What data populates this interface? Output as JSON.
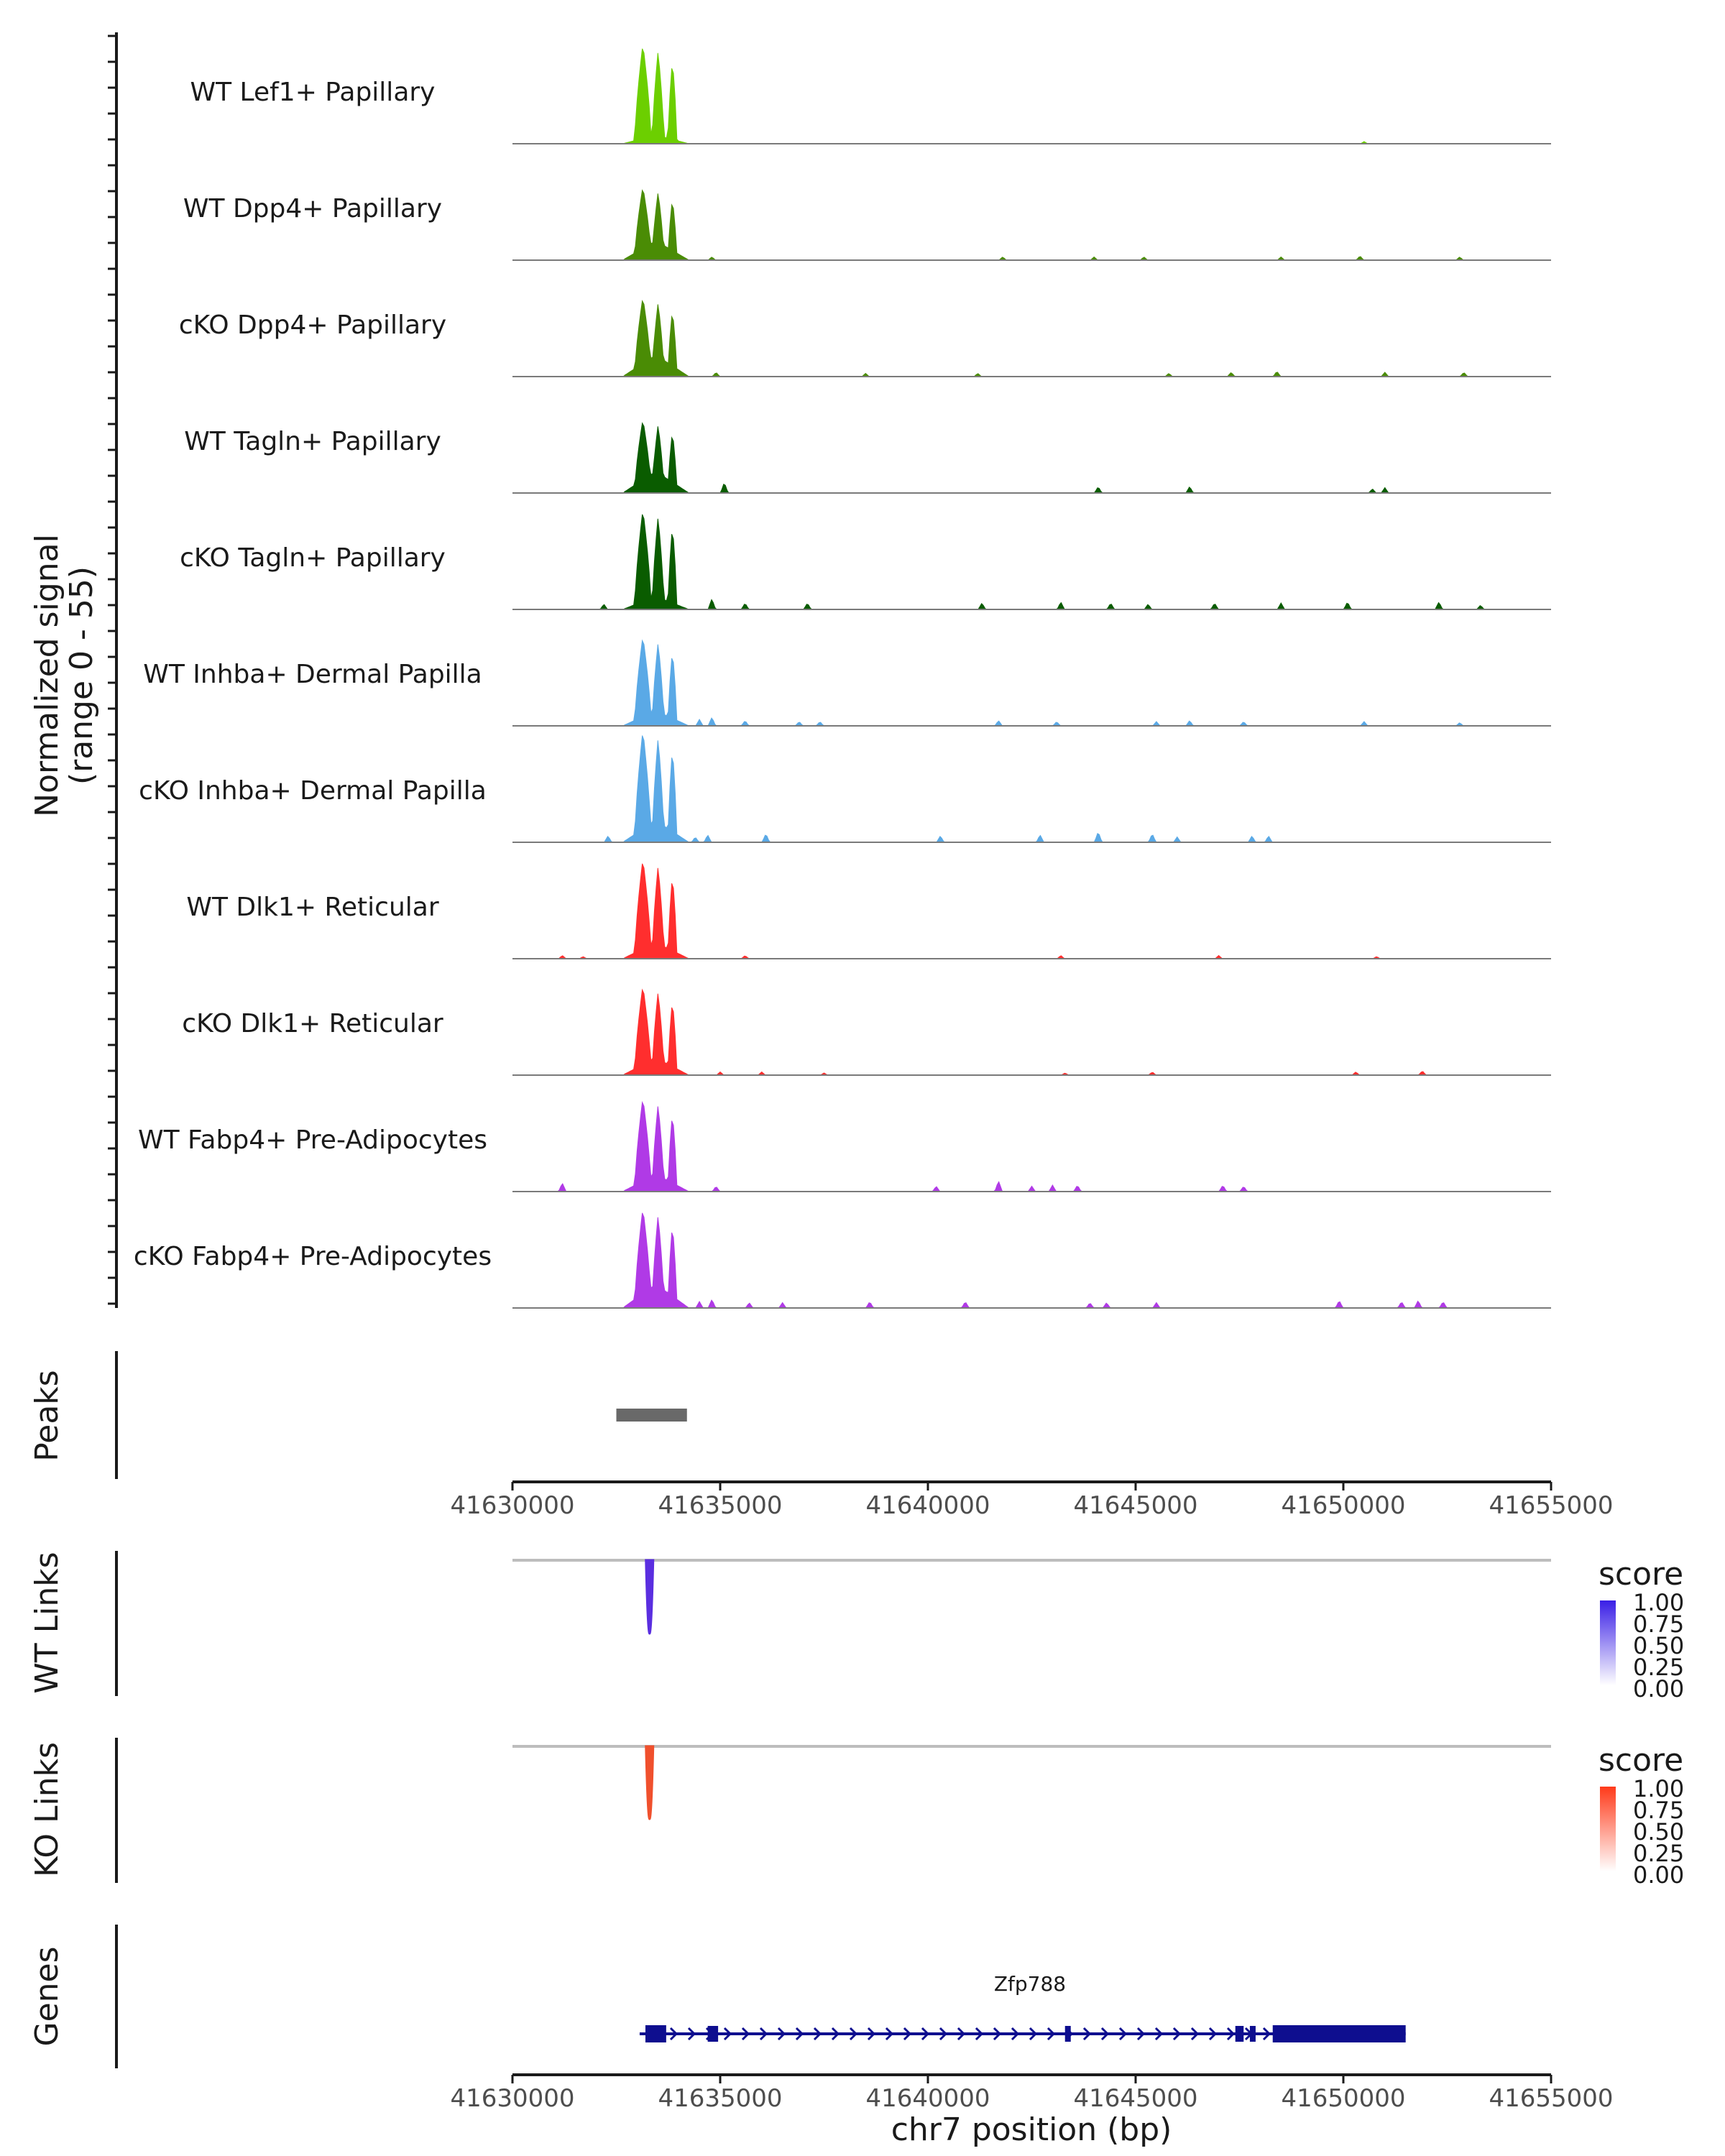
{
  "chart_data": {
    "type": "area",
    "region": "chr7:41630000-41655000",
    "y_axis_title_line1": "Normalized signal",
    "y_axis_title_line2": "(range 0 - 55)",
    "ylim": [
      0,
      55
    ],
    "xlim": [
      41630000,
      41655000
    ],
    "xlabel": "chr7 position (bp)",
    "x_ticks": [
      "41630000",
      "41635000",
      "41640000",
      "41645000",
      "41650000",
      "41655000"
    ],
    "x_tick_values": [
      41630000,
      41635000,
      41640000,
      41645000,
      41650000,
      41655000
    ],
    "main_peaks": [
      [
        41633000,
        41633280,
        0.95
      ],
      [
        41633420,
        41633590,
        0.88
      ],
      [
        41633800,
        41633900,
        0.8
      ]
    ],
    "series": [
      {
        "name": "WT Lef1+ Papillary",
        "color": "#6ccf00",
        "scale": 0.98,
        "bg": 0.08,
        "noise": [
          [
            41650500,
            0.02
          ]
        ]
      },
      {
        "name": "WT Dpp4+ Papillary",
        "color": "#4a8c05",
        "scale": 0.72,
        "bg": 0.18,
        "noise": [
          [
            41634800,
            0.03
          ],
          [
            41641800,
            0.03
          ],
          [
            41644000,
            0.03
          ],
          [
            41645200,
            0.03
          ],
          [
            41648500,
            0.03
          ],
          [
            41650400,
            0.04
          ],
          [
            41652800,
            0.03
          ]
        ]
      },
      {
        "name": "cKO Dpp4+ Papillary",
        "color": "#4a8c05",
        "scale": 0.78,
        "bg": 0.2,
        "noise": [
          [
            41634900,
            0.04
          ],
          [
            41638500,
            0.03
          ],
          [
            41641200,
            0.03
          ],
          [
            41645800,
            0.03
          ],
          [
            41647300,
            0.04
          ],
          [
            41648400,
            0.05
          ],
          [
            41651000,
            0.04
          ],
          [
            41652900,
            0.04
          ]
        ]
      },
      {
        "name": "WT Tagln+ Papillary",
        "color": "#0a5c00",
        "scale": 0.72,
        "bg": 0.2,
        "noise": [
          [
            41635100,
            0.1
          ],
          [
            41644100,
            0.06
          ],
          [
            41646300,
            0.06
          ],
          [
            41650700,
            0.04
          ],
          [
            41651000,
            0.05
          ]
        ]
      },
      {
        "name": "cKO Tagln+ Papillary",
        "color": "#0a5c00",
        "scale": 0.98,
        "bg": 0.12,
        "noise": [
          [
            41632200,
            0.05
          ],
          [
            41634800,
            0.1
          ],
          [
            41635600,
            0.06
          ],
          [
            41637100,
            0.06
          ],
          [
            41641300,
            0.06
          ],
          [
            41643200,
            0.07
          ],
          [
            41644400,
            0.06
          ],
          [
            41645300,
            0.05
          ],
          [
            41646900,
            0.06
          ],
          [
            41648500,
            0.06
          ],
          [
            41650100,
            0.07
          ],
          [
            41652300,
            0.07
          ],
          [
            41653300,
            0.04
          ]
        ]
      },
      {
        "name": "WT Inhba+ Dermal Papilla",
        "color": "#5aa9e6",
        "scale": 0.88,
        "bg": 0.14,
        "noise": [
          [
            41634500,
            0.06
          ],
          [
            41634800,
            0.08
          ],
          [
            41635600,
            0.05
          ],
          [
            41636900,
            0.04
          ],
          [
            41637400,
            0.04
          ],
          [
            41641700,
            0.05
          ],
          [
            41643100,
            0.04
          ],
          [
            41645500,
            0.04
          ],
          [
            41646300,
            0.05
          ],
          [
            41647600,
            0.04
          ],
          [
            41650500,
            0.04
          ],
          [
            41652800,
            0.03
          ]
        ]
      },
      {
        "name": "cKO Inhba+ Dermal Papilla",
        "color": "#5aa9e6",
        "scale": 1.1,
        "bg": 0.2,
        "noise": [
          [
            41632300,
            0.06
          ],
          [
            41634400,
            0.05
          ],
          [
            41634700,
            0.07
          ],
          [
            41636100,
            0.08
          ],
          [
            41640300,
            0.06
          ],
          [
            41642700,
            0.07
          ],
          [
            41644100,
            0.1
          ],
          [
            41645400,
            0.08
          ],
          [
            41646000,
            0.05
          ],
          [
            41647800,
            0.06
          ],
          [
            41648200,
            0.06
          ]
        ]
      },
      {
        "name": "WT Dlk1+ Reticular",
        "color": "#ff2e2e",
        "scale": 0.98,
        "bg": 0.15,
        "noise": [
          [
            41631200,
            0.03
          ],
          [
            41631700,
            0.02
          ],
          [
            41635600,
            0.03
          ],
          [
            41643200,
            0.03
          ],
          [
            41647000,
            0.03
          ],
          [
            41650800,
            0.02
          ]
        ]
      },
      {
        "name": "cKO Dlk1+ Reticular",
        "color": "#ff2e2e",
        "scale": 0.88,
        "bg": 0.16,
        "noise": [
          [
            41635000,
            0.03
          ],
          [
            41636000,
            0.03
          ],
          [
            41637500,
            0.02
          ],
          [
            41643300,
            0.02
          ],
          [
            41645400,
            0.03
          ],
          [
            41650300,
            0.03
          ],
          [
            41651900,
            0.04
          ]
        ]
      },
      {
        "name": "WT Fabp4+ Pre-Adipocytes",
        "color": "#b03ae6",
        "scale": 0.92,
        "bg": 0.16,
        "noise": [
          [
            41631200,
            0.08
          ],
          [
            41634900,
            0.05
          ],
          [
            41640200,
            0.05
          ],
          [
            41641700,
            0.1
          ],
          [
            41642500,
            0.05
          ],
          [
            41643000,
            0.06
          ],
          [
            41643600,
            0.06
          ],
          [
            41647100,
            0.06
          ],
          [
            41647600,
            0.05
          ]
        ]
      },
      {
        "name": "cKO Fabp4+ Pre-Adipocytes",
        "color": "#b03ae6",
        "scale": 0.98,
        "bg": 0.22,
        "noise": [
          [
            41634500,
            0.06
          ],
          [
            41634800,
            0.08
          ],
          [
            41635700,
            0.05
          ],
          [
            41636500,
            0.05
          ],
          [
            41638600,
            0.06
          ],
          [
            41640900,
            0.06
          ],
          [
            41643900,
            0.05
          ],
          [
            41644300,
            0.05
          ],
          [
            41645500,
            0.05
          ],
          [
            41649900,
            0.07
          ],
          [
            41651400,
            0.06
          ],
          [
            41651800,
            0.07
          ],
          [
            41652400,
            0.06
          ]
        ]
      }
    ],
    "peaks": {
      "label": "Peaks",
      "regions": [
        [
          41632500,
          41634200
        ]
      ],
      "color": "#696969"
    },
    "links": [
      {
        "label": "WT Links",
        "anchor": 41633300,
        "score": 1.0,
        "color": "#5a2ee0"
      },
      {
        "label": "KO Links",
        "anchor": 41633300,
        "score": 1.0,
        "color": "#f0502d"
      }
    ],
    "legends": [
      {
        "title": "score",
        "labels": [
          "1.00",
          "0.75",
          "0.50",
          "0.25",
          "0.00"
        ],
        "color_high": "#3a1fe6",
        "color_low": "#ffffff"
      },
      {
        "title": "score",
        "labels": [
          "1.00",
          "0.75",
          "0.50",
          "0.25",
          "0.00"
        ],
        "color_high": "#ff3a1a",
        "color_low": "#ffffff"
      }
    ],
    "genes": {
      "label": "Genes",
      "name": "Zfp788",
      "color": "#0e0e8f",
      "strand": "+",
      "start": 41633200,
      "end": 41651500,
      "exons": [
        [
          41633200,
          41633700
        ],
        [
          41634700,
          41634950
        ],
        [
          41643300,
          41643400
        ],
        [
          41647400,
          41647600
        ],
        [
          41647750,
          41647850
        ],
        [
          41648300,
          41651500
        ]
      ]
    }
  }
}
